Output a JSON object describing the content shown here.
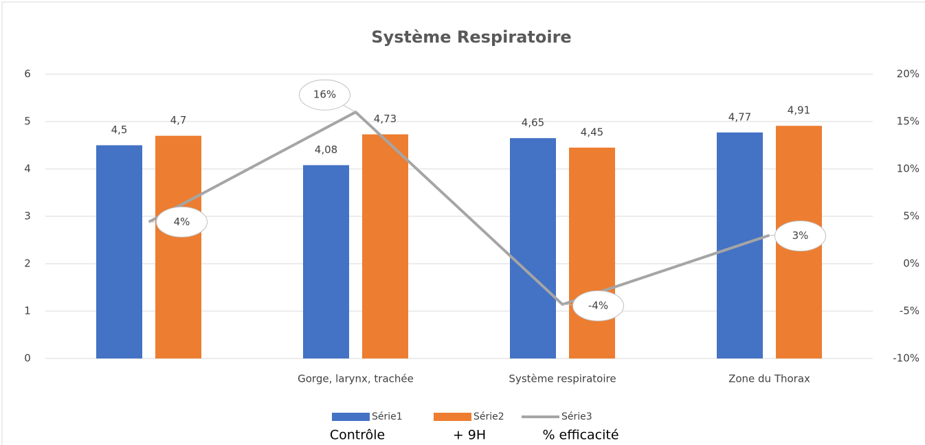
{
  "chart_data": {
    "type": "bar",
    "title": "Système Respiratoire",
    "categories": [
      null,
      "Gorge, larynx, trachée",
      "Système respiratoire",
      "Zone du Thorax"
    ],
    "series": [
      {
        "name": "Série1",
        "color": "#4472c4",
        "values": [
          4.5,
          4.08,
          4.65,
          4.77
        ],
        "value_labels": [
          "4,5",
          "4,08",
          "4,65",
          "4,77"
        ]
      },
      {
        "name": "Série2",
        "color": "#ed7d31",
        "values": [
          4.7,
          4.73,
          4.45,
          4.91
        ],
        "value_labels": [
          "4,7",
          "4,73",
          "4,45",
          "4,91"
        ]
      },
      {
        "name": "Série3",
        "color": "#a5a5a5",
        "type": "line",
        "axis": "y2",
        "values": [
          4.4,
          16,
          -4.3,
          3
        ],
        "value_labels": [
          "4%",
          "16%",
          "-4%",
          "3%"
        ]
      }
    ],
    "ylim": [
      0,
      6
    ],
    "yticks": [
      0,
      1,
      2,
      3,
      4,
      5,
      6
    ],
    "y2lim": [
      -10,
      20
    ],
    "y2ticks": [
      {
        "value": -10,
        "label": "-10%"
      },
      {
        "value": -5,
        "label": "-5%"
      },
      {
        "value": 0,
        "label": "0%"
      },
      {
        "value": 5,
        "label": "5%"
      },
      {
        "value": 10,
        "label": "10%"
      },
      {
        "value": 15,
        "label": "15%"
      },
      {
        "value": 20,
        "label": "20%"
      }
    ],
    "grid": true,
    "legend": "bottom",
    "annotations": [
      "Contrôle",
      "+ 9H",
      "% efficacité"
    ]
  }
}
